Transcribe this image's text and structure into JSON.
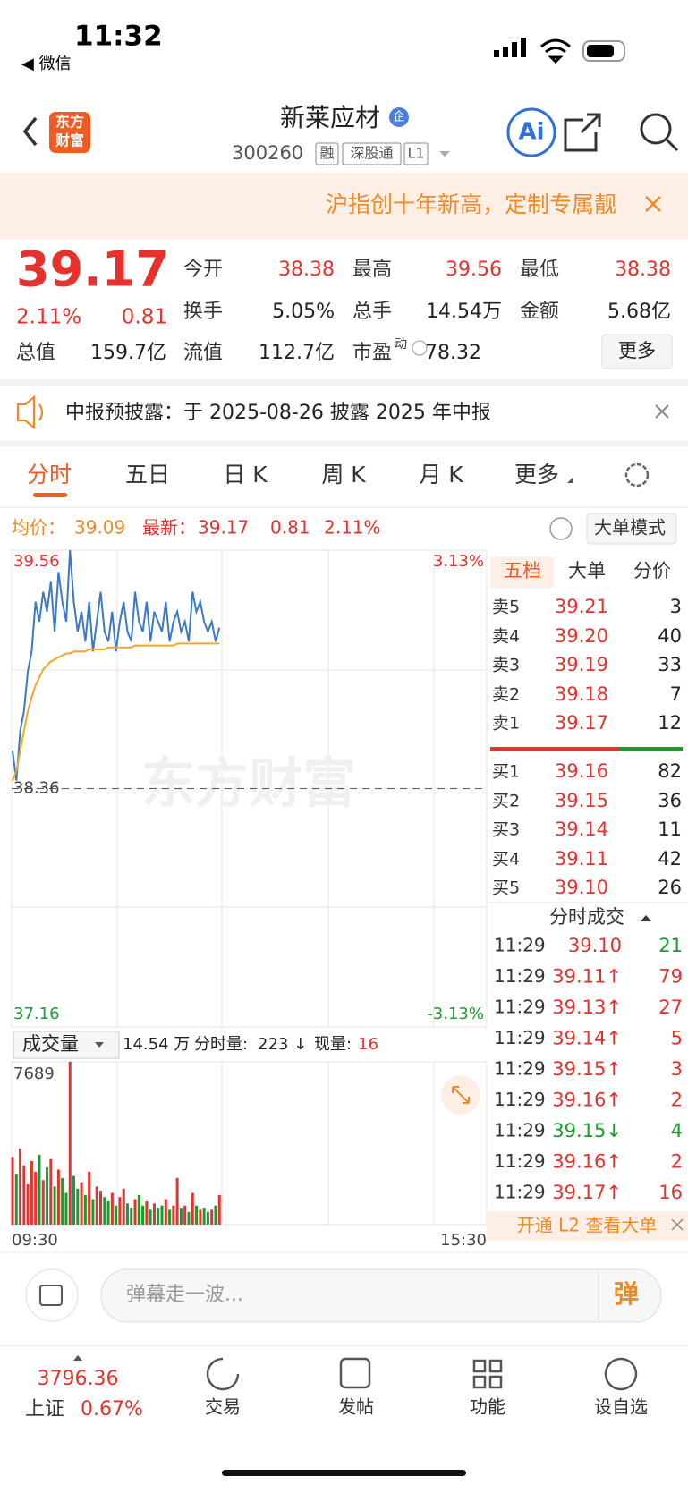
{
  "status_bar": {
    "time": "11:32",
    "back_app": "◀ 微信"
  },
  "header": {
    "logo_lines": [
      "东方",
      "财富"
    ],
    "name": "新莱应材",
    "name_badge": "企",
    "code": "300260",
    "tags": [
      "融",
      "深股通",
      "L1"
    ],
    "ai": "Ai"
  },
  "banner": {
    "text": "沪指创十年新高，定制专属靓"
  },
  "quote": {
    "price": "39.17",
    "change_pct": "2.11%",
    "change": "0.81",
    "fields": [
      {
        "label": "今开",
        "value": "38.38",
        "color": "#e5322d"
      },
      {
        "label": "最高",
        "value": "39.56",
        "color": "#e5322d"
      },
      {
        "label": "最低",
        "value": "38.38",
        "color": "#e5322d"
      },
      {
        "label": "换手",
        "value": "5.05%",
        "color": "#222"
      },
      {
        "label": "总手",
        "value": "14.54万",
        "color": "#222"
      },
      {
        "label": "金额",
        "value": "5.68亿",
        "color": "#222"
      },
      {
        "label": "总值",
        "value": "159.7亿",
        "color": "#222"
      },
      {
        "label": "流值",
        "value": "112.7亿",
        "color": "#222"
      },
      {
        "label": "市盈",
        "sup": "动",
        "value": "78.32",
        "color": "#222"
      }
    ],
    "more": "更多"
  },
  "notice": {
    "text": "中报预披露：于 2025-08-26 披露 2025 年中报"
  },
  "tabs": [
    "分时",
    "五日",
    "日 K",
    "周 K",
    "月 K",
    "更多"
  ],
  "info_bar": {
    "avg_label": "均价：",
    "avg": "39.09",
    "last_label": "最新：",
    "last": "39.17",
    "change": "0.81",
    "change_pct": "2.11%",
    "mode_button": "大单模式"
  },
  "chart_data": {
    "type": "line",
    "ylim": [
      37.16,
      39.56
    ],
    "yticks": [
      39.56,
      38.36,
      37.16
    ],
    "right_labels": [
      "3.13%",
      "-3.13%"
    ],
    "watermark": "东方财富",
    "series": [
      {
        "color": "#3a78c9",
        "values": [
          38.55,
          38.4,
          38.65,
          38.75,
          38.95,
          39.05,
          39.3,
          39.2,
          39.35,
          39.25,
          39.4,
          39.15,
          39.45,
          39.3,
          39.2,
          39.56,
          39.3,
          39.15,
          39.25,
          39.1,
          39.3,
          39.05,
          39.2,
          39.35,
          39.15,
          39.1,
          39.25,
          39.05,
          39.2,
          39.3,
          39.15,
          39.1,
          39.35,
          39.2,
          39.15,
          39.3,
          39.1,
          39.25,
          39.2,
          39.15,
          39.3,
          39.1,
          39.2,
          39.25,
          39.15,
          39.2,
          39.1,
          39.35,
          39.25,
          39.3,
          39.2,
          39.15,
          39.2,
          39.1,
          39.17
        ]
      },
      {
        "color": "#f5a623",
        "values": [
          38.4,
          38.45,
          38.55,
          38.65,
          38.75,
          38.82,
          38.88,
          38.92,
          38.96,
          38.98,
          39.0,
          39.01,
          39.02,
          39.03,
          39.04,
          39.04,
          39.05,
          39.05,
          39.05,
          39.05,
          39.06,
          39.06,
          39.06,
          39.06,
          39.06,
          39.07,
          39.07,
          39.07,
          39.07,
          39.07,
          39.07,
          39.07,
          39.08,
          39.08,
          39.08,
          39.08,
          39.08,
          39.08,
          39.08,
          39.08,
          39.08,
          39.08,
          39.08,
          39.09,
          39.09,
          39.09,
          39.09,
          39.09,
          39.09,
          39.09,
          39.09,
          39.09,
          39.09,
          39.09,
          39.09
        ]
      }
    ]
  },
  "volume": {
    "type": "bar",
    "label": "成交量",
    "summary": "14.54 万",
    "period_label": "分时量:",
    "period_value": "223 ↓",
    "now_label": "现量:",
    "now_value": "16",
    "ylim": [
      0,
      7689
    ],
    "yticks": [
      7689
    ],
    "up_color": "#e5322d",
    "down_color": "#1a9c2c",
    "values": [
      3200,
      2400,
      3600,
      2800,
      1900,
      3000,
      2500,
      3300,
      2100,
      2700,
      3100,
      1800,
      2600,
      2200,
      1500,
      7689,
      2300,
      1700,
      2000,
      1400,
      2500,
      1200,
      1800,
      1600,
      1300,
      1100,
      1500,
      900,
      1300,
      1700,
      1000,
      800,
      1200,
      1400,
      900,
      1100,
      700,
      1000,
      800,
      900,
      1200,
      700,
      900,
      2200,
      800,
      900,
      600,
      1500,
      900,
      700,
      800,
      600,
      700,
      900,
      1400
    ],
    "xlabels": [
      "09:30",
      "15:30"
    ]
  },
  "order_book": {
    "tabs": [
      "五档",
      "大单",
      "分价"
    ],
    "asks": [
      [
        "卖5",
        "39.21",
        "3"
      ],
      [
        "卖4",
        "39.20",
        "40"
      ],
      [
        "卖3",
        "39.19",
        "33"
      ],
      [
        "卖2",
        "39.18",
        "7"
      ],
      [
        "卖1",
        "39.17",
        "12"
      ]
    ],
    "bids": [
      [
        "买1",
        "39.16",
        "82"
      ],
      [
        "买2",
        "39.15",
        "36"
      ],
      [
        "买3",
        "39.14",
        "11"
      ],
      [
        "买4",
        "39.11",
        "42"
      ],
      [
        "买5",
        "39.10",
        "26"
      ]
    ]
  },
  "trades": {
    "title": "分时成交",
    "rows": [
      {
        "time": "11:29",
        "price": "39.10",
        "volume": "21",
        "color": "#1a9c2c"
      },
      {
        "time": "11:29",
        "price": "39.11↑",
        "volume": "79",
        "color": "#e5322d"
      },
      {
        "time": "11:29",
        "price": "39.13↑",
        "volume": "27",
        "color": "#e5322d"
      },
      {
        "time": "11:29",
        "price": "39.14↑",
        "volume": "5",
        "color": "#e5322d"
      },
      {
        "time": "11:29",
        "price": "39.15↑",
        "volume": "3",
        "color": "#e5322d"
      },
      {
        "time": "11:29",
        "price": "39.16↑",
        "volume": "2",
        "color": "#e5322d"
      },
      {
        "time": "11:29",
        "price": "39.15↓",
        "volume": "4",
        "color": "#1a9c2c"
      },
      {
        "time": "11:29",
        "price": "39.16↑",
        "volume": "2",
        "color": "#e5322d"
      },
      {
        "time": "11:29",
        "price": "39.17↑",
        "volume": "16",
        "color": "#e5322d"
      }
    ]
  },
  "l2_promo": "开通 L2 查看大单",
  "comment": {
    "placeholder": "弹幕走一波...",
    "send": "弹"
  },
  "footer": {
    "index_value": "3796.36",
    "index_name": "上证",
    "index_change": "0.67%",
    "nav": [
      "交易",
      "发帖",
      "功能",
      "设自选"
    ]
  }
}
